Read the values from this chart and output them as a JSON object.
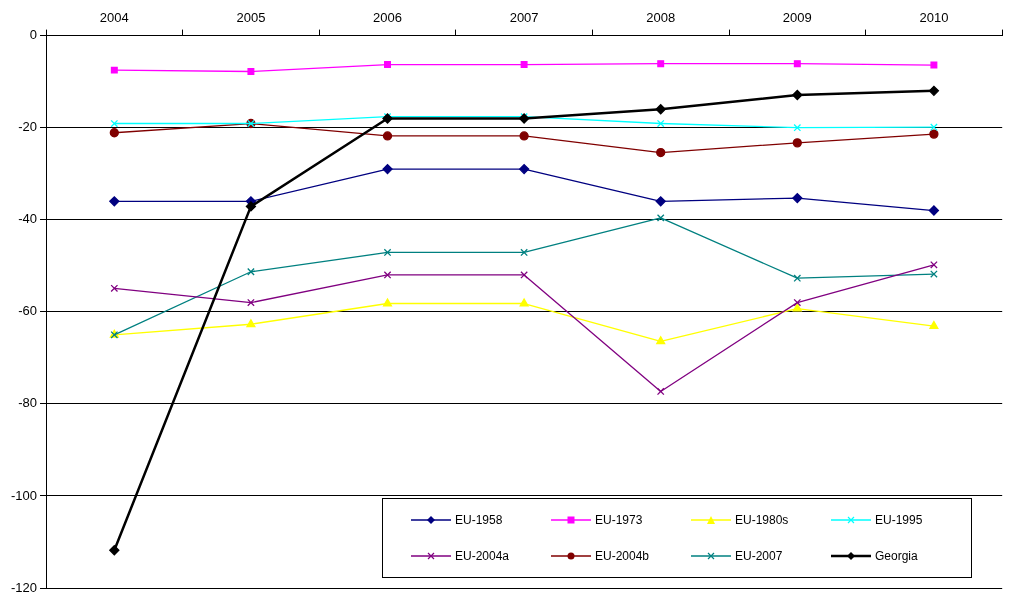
{
  "chart_data": {
    "type": "line",
    "categories": [
      "2004",
      "2005",
      "2006",
      "2007",
      "2008",
      "2009",
      "2010"
    ],
    "ylim": [
      -120,
      0
    ],
    "yticks": [
      -120,
      -100,
      -80,
      -60,
      -40,
      -20,
      0
    ],
    "grid": "y",
    "legend": "bottom right",
    "series": [
      {
        "name": "EU-1958",
        "color": "#000080",
        "marker": "diamond",
        "values": [
          -36,
          -36,
          -29,
          -29,
          -36,
          -35.3,
          -38
        ]
      },
      {
        "name": "EU-1973",
        "color": "#ff00ff",
        "marker": "square",
        "values": [
          -7.5,
          -7.8,
          -6.3,
          -6.3,
          -6.1,
          -6.1,
          -6.4
        ]
      },
      {
        "name": "EU-1980s",
        "color": "#ffff00",
        "marker": "triangle",
        "values": [
          -65,
          -62.7,
          -58.2,
          -58.2,
          -66.4,
          -59.3,
          -63.1
        ]
      },
      {
        "name": "EU-1995",
        "color": "#00ffff",
        "marker": "cross",
        "values": [
          -19.1,
          -19.1,
          -17.6,
          -17.6,
          -19.1,
          -20,
          -19.9
        ]
      },
      {
        "name": "EU-2004a",
        "color": "#800080",
        "marker": "cross",
        "values": [
          -54.9,
          -58,
          -52,
          -52,
          -77.3,
          -58,
          -49.8
        ]
      },
      {
        "name": "EU-2004b",
        "color": "#800000",
        "marker": "circle",
        "values": [
          -21.1,
          -19.1,
          -21.8,
          -21.8,
          -25.4,
          -23.3,
          -21.4
        ]
      },
      {
        "name": "EU-2007",
        "color": "#008080",
        "marker": "cross",
        "values": [
          -65,
          -51.3,
          -47.1,
          -47.1,
          -39.6,
          -52.7,
          -51.8
        ]
      },
      {
        "name": "Georgia",
        "color": "#000000",
        "marker": "diamond",
        "values": [
          -111.8,
          -37.1,
          -18,
          -18,
          -16,
          -12.9,
          -12
        ]
      }
    ]
  }
}
